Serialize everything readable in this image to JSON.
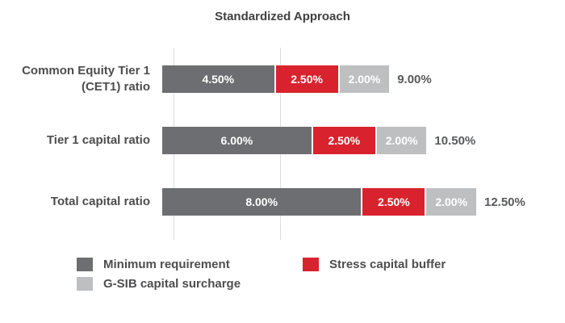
{
  "title": "Standardized Approach",
  "chart_data": {
    "type": "bar",
    "orientation": "horizontal",
    "stacked": true,
    "title": "Standardized Approach",
    "categories": [
      "Common Equity Tier 1 (CET1) ratio",
      "Tier 1 capital ratio",
      "Total capital ratio"
    ],
    "series": [
      {
        "name": "Minimum requirement",
        "color": "#6d6e71",
        "values": [
          4.5,
          6.0,
          8.0
        ],
        "labels": [
          "4.50%",
          "6.00%",
          "8.00%"
        ]
      },
      {
        "name": "Stress capital buffer",
        "color": "#d8232e",
        "values": [
          2.5,
          2.5,
          2.5
        ],
        "labels": [
          "2.50%",
          "2.50%",
          "2.50%"
        ]
      },
      {
        "name": "G-SIB capital surcharge",
        "color": "#bdbfc1",
        "values": [
          2.0,
          2.0,
          2.0
        ],
        "labels": [
          "2.00%",
          "2.00%",
          "2.00%"
        ]
      }
    ],
    "totals": [
      "9.00%",
      "10.50%",
      "12.50%"
    ],
    "xlim": [
      0,
      12.5
    ],
    "grid": true,
    "legend_position": "bottom"
  }
}
